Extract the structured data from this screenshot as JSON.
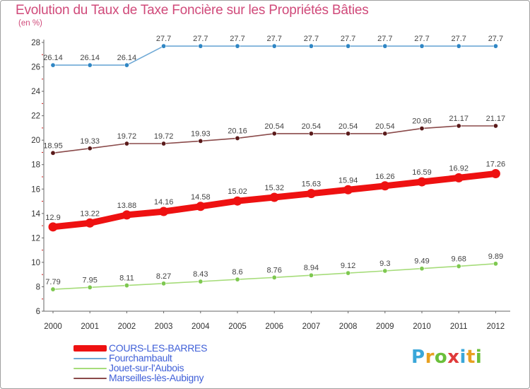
{
  "header": {
    "title": "Evolution du Taux de Taxe Foncière sur les Propriétés Bâties",
    "unit": "(en %)"
  },
  "logo": {
    "text": "Proxiti",
    "letter_colors": [
      "#3aa7d9",
      "#e8a020",
      "#6abf3a",
      "#e03a3a",
      "#3aa7d9",
      "#e8a020",
      "#6abf3a"
    ]
  },
  "chart_data": {
    "type": "line",
    "title": "Evolution du Taux de Taxe Foncière sur les Propriétés Bâties",
    "ylabel": "(en %)",
    "xlabel": "",
    "ylim": [
      6,
      28
    ],
    "y_ticks": [
      "6",
      "8",
      "10",
      "12",
      "14",
      "16",
      "18",
      "20",
      "22",
      "24",
      "26",
      "28"
    ],
    "grid": false,
    "legend_position": "bottom-left",
    "categories": [
      "2000",
      "2001",
      "2002",
      "2003",
      "2004",
      "2005",
      "2006",
      "2007",
      "2008",
      "2009",
      "2010",
      "2011",
      "2012"
    ],
    "series": [
      {
        "name": "COURS-LES-BARRES",
        "color": "#ee1111",
        "marker": "#ee1111",
        "emphasis": "thick",
        "values": [
          12.9,
          13.22,
          13.88,
          14.16,
          14.58,
          15.02,
          15.32,
          15.63,
          15.94,
          16.26,
          16.59,
          16.92,
          17.26
        ],
        "labels": [
          "12.9",
          "13.22",
          "13.88",
          "14.16",
          "14.58",
          "15.02",
          "15.32",
          "15.63",
          "15.94",
          "16.26",
          "16.59",
          "16.92",
          "17.26"
        ]
      },
      {
        "name": "Fourchambault",
        "color": "#6fa9d6",
        "marker": "#2f86c4",
        "emphasis": "thin",
        "values": [
          26.14,
          26.14,
          26.14,
          27.7,
          27.7,
          27.7,
          27.7,
          27.7,
          27.7,
          27.7,
          27.7,
          27.7,
          27.7
        ],
        "labels": [
          "26.14",
          "26.14",
          "26.14",
          "27.7",
          "27.7",
          "27.7",
          "27.7",
          "27.7",
          "27.7",
          "27.7",
          "27.7",
          "27.7",
          "27.7"
        ]
      },
      {
        "name": "Jouet-sur-l'Aubois",
        "color": "#a6dc7a",
        "marker": "#7ec850",
        "emphasis": "thin",
        "values": [
          7.79,
          7.95,
          8.11,
          8.27,
          8.43,
          8.6,
          8.76,
          8.94,
          9.12,
          9.3,
          9.49,
          9.68,
          9.89
        ],
        "labels": [
          "7.79",
          "7.95",
          "8.11",
          "8.27",
          "8.43",
          "8.6",
          "8.76",
          "8.94",
          "9.12",
          "9.3",
          "9.49",
          "9.68",
          "9.89"
        ]
      },
      {
        "name": "Marseilles-lès-Aubigny",
        "color": "#8a4a4a",
        "marker": "#5a1a1a",
        "emphasis": "thin",
        "values": [
          18.95,
          19.33,
          19.72,
          19.72,
          19.93,
          20.16,
          20.54,
          20.54,
          20.54,
          20.54,
          20.96,
          21.17,
          21.17
        ],
        "labels": [
          "18.95",
          "19.33",
          "19.72",
          "19.72",
          "19.93",
          "20.16",
          "20.54",
          "20.54",
          "20.54",
          "20.54",
          "20.96",
          "21.17",
          "21.17"
        ]
      }
    ]
  }
}
